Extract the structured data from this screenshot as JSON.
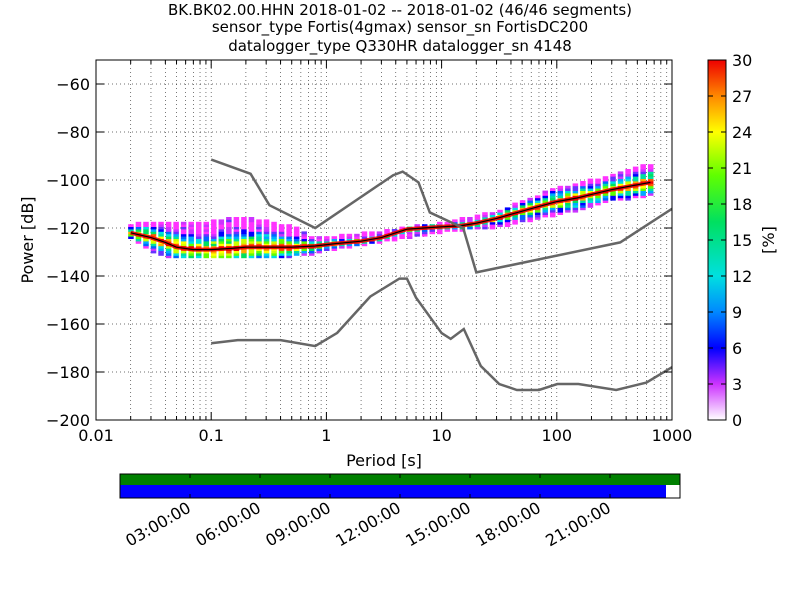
{
  "title_lines": [
    "BK.BK02.00.HHN   2018-01-02 -- 2018-01-02  (46/46 segments)",
    "sensor_type Fortis(4gmax) sensor_sn FortisDC200",
    "datalogger_type Q330HR datalogger_sn 4148"
  ],
  "chart_data": {
    "type": "heatmap",
    "xlabel": "Period [s]",
    "ylabel": "Power [dB]",
    "x_scale": "log",
    "xlim": [
      0.01,
      1000
    ],
    "ylim": [
      -200,
      -50
    ],
    "x_ticks": [
      0.01,
      0.1,
      1,
      10,
      100,
      1000
    ],
    "x_tick_labels": [
      "0.01",
      "0.1",
      "1",
      "10",
      "100",
      "1000"
    ],
    "y_ticks": [
      -200,
      -180,
      -160,
      -140,
      -120,
      -100,
      -80,
      -60
    ],
    "y_tick_labels": [
      "−200",
      "−180",
      "−160",
      "−140",
      "−120",
      "−100",
      "−80",
      "−60"
    ],
    "grid": true,
    "colorbar": {
      "label": "[%]",
      "range": [
        0,
        30
      ],
      "ticks": [
        0,
        3,
        6,
        9,
        12,
        15,
        18,
        21,
        24,
        27,
        30
      ],
      "tick_labels": [
        "0",
        "3",
        "6",
        "9",
        "12",
        "15",
        "18",
        "21",
        "24",
        "27",
        "30"
      ]
    },
    "noise_model_high": {
      "period": [
        0.1,
        0.22,
        0.32,
        0.8,
        3.8,
        4.6,
        6.3,
        7.9,
        15.4,
        20,
        354.8,
        1000
      ],
      "power": [
        -91.5,
        -97.4,
        -110.5,
        -120,
        -98,
        -96.5,
        -101,
        -113.5,
        -120,
        -138.5,
        -126,
        -112
      ]
    },
    "noise_model_low": {
      "period": [
        0.1,
        0.17,
        0.4,
        0.8,
        1.24,
        2.4,
        4.3,
        5,
        6,
        10,
        12,
        15.6,
        21.9,
        31.6,
        45,
        70,
        101,
        154,
        328,
        600,
        1000
      ],
      "power": [
        -168,
        -166.7,
        -166.7,
        -169.2,
        -163.7,
        -148.6,
        -141.1,
        -141.1,
        -149,
        -163.8,
        -166.2,
        -162.1,
        -177.5,
        -185,
        -187.5,
        -187.5,
        -185,
        -185,
        -187.5,
        -184.4,
        -178
      ]
    },
    "psd_mode": {
      "period": [
        0.02,
        0.03,
        0.04,
        0.05,
        0.07,
        0.1,
        0.15,
        0.2,
        0.3,
        0.5,
        0.8,
        1.2,
        2,
        3,
        4,
        5,
        7,
        10,
        15,
        20,
        30,
        50,
        70,
        100,
        150,
        200,
        300,
        500,
        650
      ],
      "power": [
        -122,
        -124,
        -126,
        -128,
        -129,
        -129,
        -128.5,
        -128,
        -128,
        -128,
        -127.5,
        -126.5,
        -125.5,
        -124,
        -122,
        -120.5,
        -120,
        -119.5,
        -119,
        -118,
        -116,
        -113,
        -111,
        -109,
        -107.5,
        -106,
        -104,
        -102,
        -101
      ]
    },
    "psd_spread": {
      "period": [
        0.02,
        0.03,
        0.05,
        0.1,
        0.2,
        0.5,
        0.8,
        1.2,
        3,
        10,
        30,
        100,
        300,
        650
      ],
      "power_min": [
        -119,
        -118,
        -119,
        -118,
        -116,
        -120,
        -125,
        -124,
        -122,
        -118.5,
        -114,
        -104,
        -99,
        -94
      ],
      "power_max": [
        -124,
        -129,
        -132,
        -132,
        -132,
        -131,
        -130,
        -128,
        -125,
        -121,
        -119,
        -114,
        -108,
        -106
      ]
    },
    "timeline": {
      "tick_labels": [
        "03:00:00",
        "06:00:00",
        "09:00:00",
        "12:00:00",
        "15:00:00",
        "18:00:00",
        "21:00:00"
      ],
      "data_coverage_fraction": 1.0,
      "psd_coverage_fraction": 0.975,
      "colors": {
        "data": "#008000",
        "psd": "#0000ff"
      }
    }
  }
}
